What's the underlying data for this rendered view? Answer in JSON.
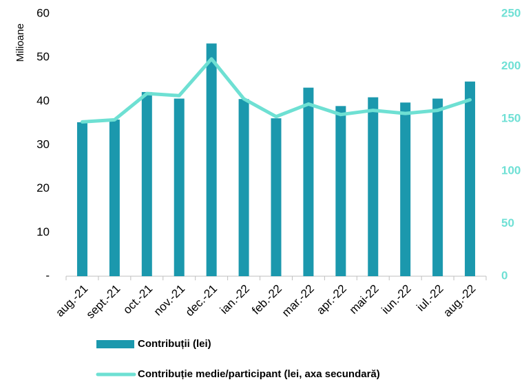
{
  "chart_data": {
    "type": "bar-line",
    "y_label": "Milioane",
    "categories": [
      "aug.-21",
      "sept.-21",
      "oct.-21",
      "nov.-21",
      "dec.-21",
      "ian.-22",
      "feb.-22",
      "mar.-22",
      "apr.-22",
      "mai-22",
      "iun.-22",
      "iul.-22",
      "aug.-22"
    ],
    "series": [
      {
        "name": "Contribuții (lei)",
        "color": "#1b98ad",
        "type": "bar",
        "values": [
          35.2,
          35.8,
          42.1,
          40.6,
          53.2,
          40.5,
          36.1,
          43.1,
          38.9,
          40.9,
          39.7,
          40.6,
          44.5
        ]
      },
      {
        "name": "Contribuție medie/participant (lei, axa secundară)",
        "color": "#6ee0d3",
        "type": "line",
        "axis": "y2",
        "values": [
          147,
          149,
          174,
          172,
          207,
          169,
          152,
          164,
          154,
          158,
          155,
          158,
          168
        ]
      }
    ],
    "ylim": [
      0,
      60
    ],
    "yticks": [
      {
        "value": 0,
        "label": "-"
      },
      10,
      20,
      30,
      40,
      50,
      60
    ],
    "y2lim": [
      0,
      250
    ],
    "y2ticks": [
      0,
      50,
      100,
      150,
      200,
      250
    ]
  }
}
